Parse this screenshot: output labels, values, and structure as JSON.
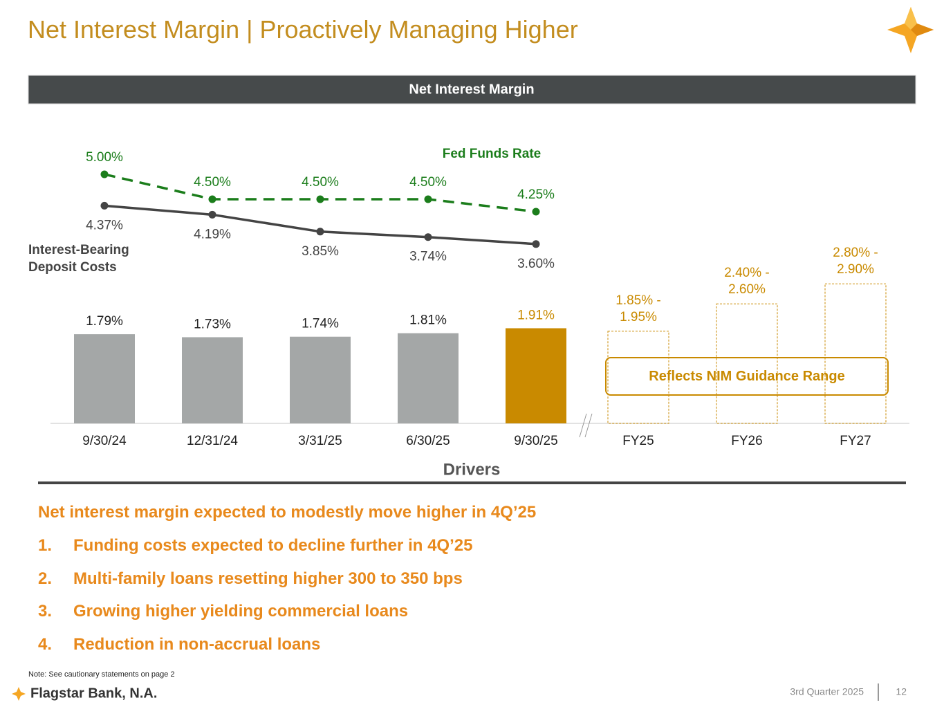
{
  "title": "Net Interest Margin | Proactively Managing Higher",
  "section_header": "Net Interest Margin",
  "chart_data": {
    "type": "bar",
    "categories": [
      "9/30/24",
      "12/31/24",
      "3/31/25",
      "6/30/25",
      "9/30/25",
      "FY25",
      "FY26",
      "FY27"
    ],
    "ylim": [
      0,
      5
    ],
    "bars": {
      "values": [
        1.79,
        1.73,
        1.74,
        1.81,
        1.91,
        null,
        null,
        null
      ],
      "value_labels": [
        "1.79%",
        "1.73%",
        "1.74%",
        "1.81%",
        "1.91%",
        null,
        null,
        null
      ],
      "colors": [
        "#a4a7a7",
        "#a4a7a7",
        "#a4a7a7",
        "#a4a7a7",
        "#c98a00",
        null,
        null,
        null
      ]
    },
    "series": [
      {
        "name": "Fed Funds Rate",
        "type": "line",
        "color": "#1b7d1b",
        "dashed": true,
        "values": [
          5.0,
          4.5,
          4.5,
          4.5,
          4.25,
          null,
          null,
          null
        ],
        "value_labels": [
          "5.00%",
          "4.50%",
          "4.50%",
          "4.50%",
          "4.25%",
          null,
          null,
          null
        ]
      },
      {
        "name": "Interest-Bearing Deposit Costs",
        "type": "line",
        "color": "#444444",
        "dashed": false,
        "values": [
          4.37,
          4.19,
          3.85,
          3.74,
          3.6,
          null,
          null,
          null
        ],
        "value_labels": [
          "4.37%",
          "4.19%",
          "3.85%",
          "3.74%",
          "3.60%",
          null,
          null,
          null
        ]
      }
    ],
    "guidance": {
      "label": "Reflects NIM Guidance Range",
      "color": "#c98a00",
      "low": [
        null,
        null,
        null,
        null,
        null,
        1.85,
        2.4,
        2.8
      ],
      "high": [
        null,
        null,
        null,
        null,
        null,
        1.95,
        2.6,
        2.9
      ],
      "value_labels": [
        null,
        null,
        null,
        null,
        null,
        "1.85% - 1.95%",
        "2.40% - 2.60%",
        "2.80% - 2.90%"
      ]
    }
  },
  "drivers": {
    "title": "Drivers",
    "headline": "Net interest margin expected to modestly move higher in 4Q’25",
    "items": [
      {
        "number": "1.",
        "text": "Funding costs expected to decline further in 4Q’25"
      },
      {
        "number": "2.",
        "text": "Multi-family loans resetting higher 300 to 350 bps"
      },
      {
        "number": "3.",
        "text": "Growing higher yielding commercial loans"
      },
      {
        "number": "4.",
        "text": "Reduction in non-accrual loans"
      }
    ]
  },
  "note": "Note: See cautionary statements on page 2",
  "footer": {
    "brand": "Flagstar Bank, N.A.",
    "period": "3rd Quarter 2025",
    "page": "12"
  }
}
